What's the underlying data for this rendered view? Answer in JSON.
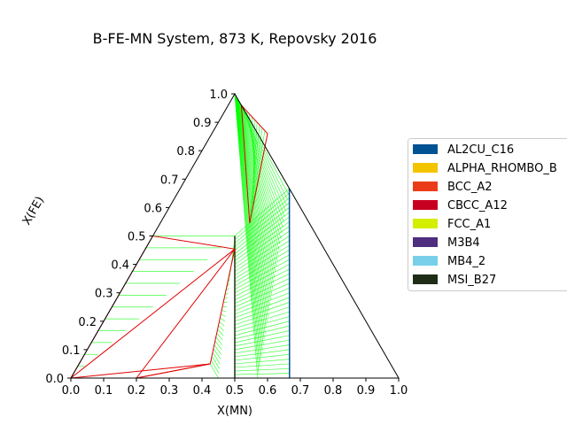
{
  "chart_data": {
    "type": "ternary-phase-diagram",
    "title": "B-FE-MN System, 873 K, Repovsky 2016",
    "xlabel": "X(MN)",
    "ylabel": "X(FE)",
    "xlim": [
      0,
      1
    ],
    "ylim": [
      0,
      1
    ],
    "x_ticks": [
      "0.0",
      "0.1",
      "0.2",
      "0.3",
      "0.4",
      "0.5",
      "0.6",
      "0.7",
      "0.8",
      "0.9",
      "1.0"
    ],
    "y_ticks": [
      "0.0",
      "0.1",
      "0.2",
      "0.3",
      "0.4",
      "0.5",
      "0.6",
      "0.7",
      "0.8",
      "0.9",
      "1.0"
    ],
    "legend_position": "right",
    "legend": [
      {
        "name": "AL2CU_C16",
        "color": "#005293"
      },
      {
        "name": "ALPHA_RHOMBO_B",
        "color": "#f4c300"
      },
      {
        "name": "BCC_A2",
        "color": "#ec3b18"
      },
      {
        "name": "CBCC_A12",
        "color": "#c8001f"
      },
      {
        "name": "FCC_A1",
        "color": "#d4ee00"
      },
      {
        "name": "M3B4",
        "color": "#4f2d7f"
      },
      {
        "name": "MB4_2",
        "color": "#78cfe9"
      },
      {
        "name": "MSI_B27",
        "color": "#1f2d17"
      }
    ],
    "tie_line_color": "#00ff00",
    "three_phase_color": "#e00000",
    "triangle": [
      [
        0,
        0
      ],
      [
        1,
        0
      ],
      [
        0,
        1
      ]
    ],
    "boundaries": [
      {
        "phase": "AL2CU_C16",
        "points": [
          [
            0.333,
            0.667
          ],
          [
            0.667,
            0.0
          ]
        ]
      },
      {
        "phase": "MSI_B27",
        "points": [
          [
            0.25,
            0.5
          ],
          [
            0.5,
            0.0
          ]
        ]
      }
    ],
    "three_phase_triangles": [
      {
        "points": [
          [
            0.0,
            0.0
          ],
          [
            0.273,
            0.454
          ],
          [
            0.0,
            0.5
          ]
        ]
      },
      {
        "points": [
          [
            0.0,
            0.0
          ],
          [
            0.2,
            0.0
          ],
          [
            0.4,
            0.05
          ]
        ]
      },
      {
        "points": [
          [
            0.2,
            0.0
          ],
          [
            0.273,
            0.454
          ],
          [
            0.4,
            0.05
          ]
        ]
      },
      {
        "points": [
          [
            0.04,
            0.96
          ],
          [
            0.17,
            0.86
          ],
          [
            0.273,
            0.545
          ]
        ]
      }
    ],
    "tie_line_regions": [
      {
        "from": [
          [
            0.0,
            0.0
          ],
          [
            0.0,
            0.5
          ]
        ],
        "to": [
          [
            0.0,
            0.0
          ],
          [
            0.25,
            0.5
          ]
        ],
        "count": 12
      },
      {
        "from": [
          [
            0.25,
            0.5
          ],
          [
            0.5,
            0.0
          ]
        ],
        "to": [
          [
            0.333,
            0.667
          ],
          [
            0.667,
            0.0
          ]
        ],
        "count": 40
      },
      {
        "from": [
          [
            0.0,
            1.0
          ],
          [
            0.0,
            1.0
          ]
        ],
        "to": [
          [
            0.333,
            0.667
          ],
          [
            0.57,
            0.0
          ]
        ],
        "count": 34
      },
      {
        "from": [
          [
            0.273,
            0.454
          ],
          [
            0.4,
            0.05
          ]
        ],
        "to": [
          [
            0.25,
            0.5
          ],
          [
            0.45,
            0.0
          ]
        ],
        "count": 30
      },
      {
        "from": [
          [
            0.04,
            0.96
          ],
          [
            0.17,
            0.86
          ]
        ],
        "to": [
          [
            0.16,
            0.82
          ],
          [
            0.265,
            0.56
          ]
        ],
        "count": 10
      },
      {
        "from": [
          [
            0.667,
            0.0
          ],
          [
            0.667,
            0.0
          ]
        ],
        "to": [
          [
            1.0,
            0.0
          ],
          [
            1.0,
            0.0
          ]
        ],
        "count": 3
      }
    ]
  }
}
